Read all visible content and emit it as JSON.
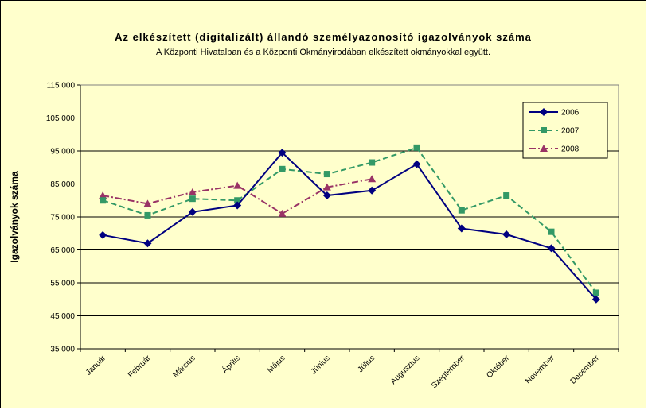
{
  "chart_data": {
    "type": "line",
    "title": "Az elkészített (digitalizált) állandó személyazonosító igazolványok száma",
    "subtitle": "A Központi Hivatalban és a Központi Okmányirodában elkészített okmányokkal együtt.",
    "xlabel": "",
    "ylabel": "Igazolványok száma",
    "ylim": [
      35000,
      115000
    ],
    "yticks": [
      "35 000",
      "45 000",
      "55 000",
      "65 000",
      "75 000",
      "85 000",
      "95 000",
      "105 000",
      "115 000"
    ],
    "categories": [
      "Január",
      "Február",
      "Március",
      "Április",
      "Május",
      "Június",
      "Július",
      "Augusztus",
      "Szeptember",
      "Október",
      "November",
      "December"
    ],
    "grid": true,
    "legend_position": "top-right",
    "series": [
      {
        "name": "2006",
        "color": "#000080",
        "marker": "diamond",
        "dash": "solid",
        "values": [
          69500,
          67000,
          76500,
          78500,
          94500,
          81500,
          83000,
          91000,
          71500,
          69700,
          65500,
          50000
        ]
      },
      {
        "name": "2007",
        "color": "#339966",
        "marker": "square",
        "dash": "dashed",
        "values": [
          80000,
          75500,
          80500,
          80000,
          89500,
          88000,
          91500,
          96000,
          77000,
          81500,
          70500,
          52000
        ]
      },
      {
        "name": "2008",
        "color": "#993366",
        "marker": "triangle",
        "dash": "dashdot",
        "values": [
          81500,
          79000,
          82500,
          84500,
          76000,
          84000,
          86500,
          null,
          null,
          null,
          null,
          null
        ]
      }
    ]
  }
}
